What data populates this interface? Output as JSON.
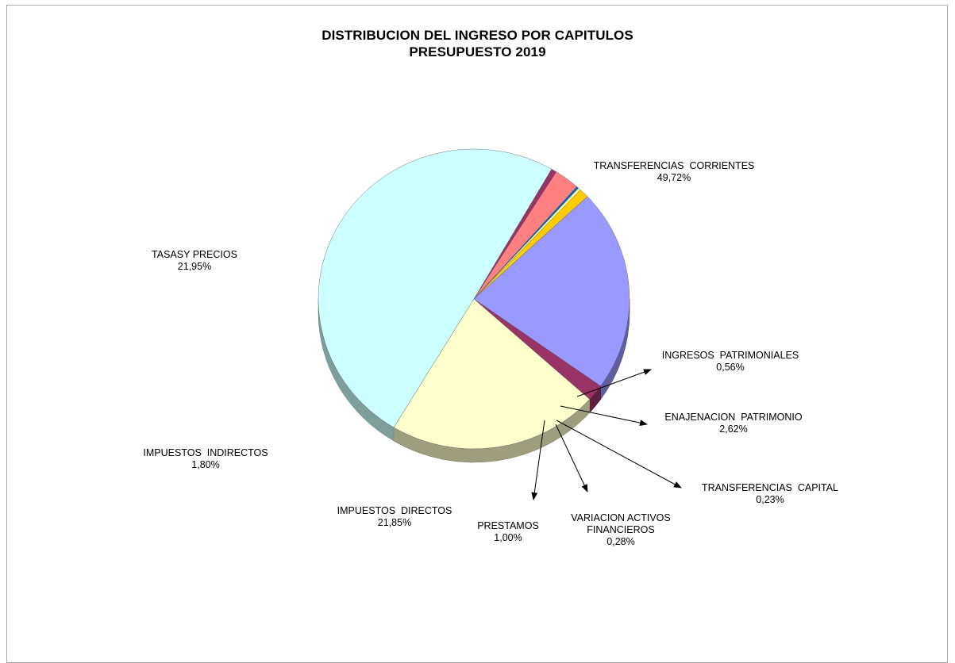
{
  "chart_data": {
    "type": "pie",
    "title": "DISTRIBUCION DEL INGRESO POR CAPITULOS",
    "subtitle": "PRESUPUESTO 2019",
    "slices": [
      {
        "id": "transferencias-corrientes",
        "name": "TRANSFERENCIAS  CORRIENTES",
        "value": 49.72,
        "label": "49,72%",
        "color": "#ccffff"
      },
      {
        "id": "ingresos-patrimoniales",
        "name": "INGRESOS  PATRIMONIALES",
        "value": 0.56,
        "label": "0,56%",
        "color": "#993366"
      },
      {
        "id": "enajenacion-patrimonio",
        "name": "ENAJENACION  PATRIMONIO",
        "value": 2.62,
        "label": "2,62%",
        "color": "#ff8080"
      },
      {
        "id": "transferencias-capital",
        "name": "TRANSFERENCIAS  CAPITAL",
        "value": 0.23,
        "label": "0,23%",
        "color": "#0066cc"
      },
      {
        "id": "variacion-activos-financieros",
        "name": [
          "VARIACION ACTIVOS",
          "FINANCIEROS"
        ],
        "value": 0.28,
        "label": "0,28%",
        "color": "#ffff99"
      },
      {
        "id": "prestamos",
        "name": "PRESTAMOS",
        "value": 1.0,
        "label": "1,00%",
        "color": "#ffcc00"
      },
      {
        "id": "impuestos-directos",
        "name": "IMPUESTOS  DIRECTOS",
        "value": 21.85,
        "label": "21,85%",
        "color": "#9999ff"
      },
      {
        "id": "impuestos-indirectos",
        "name": "IMPUESTOS  INDIRECTOS",
        "value": 1.8,
        "label": "1,80%",
        "color": "#993366"
      },
      {
        "id": "tasas-y-precios",
        "name": "TASASY PRECIOS",
        "value": 21.95,
        "label": "21,95%",
        "color": "#ffffcc"
      }
    ],
    "legend": "none"
  }
}
